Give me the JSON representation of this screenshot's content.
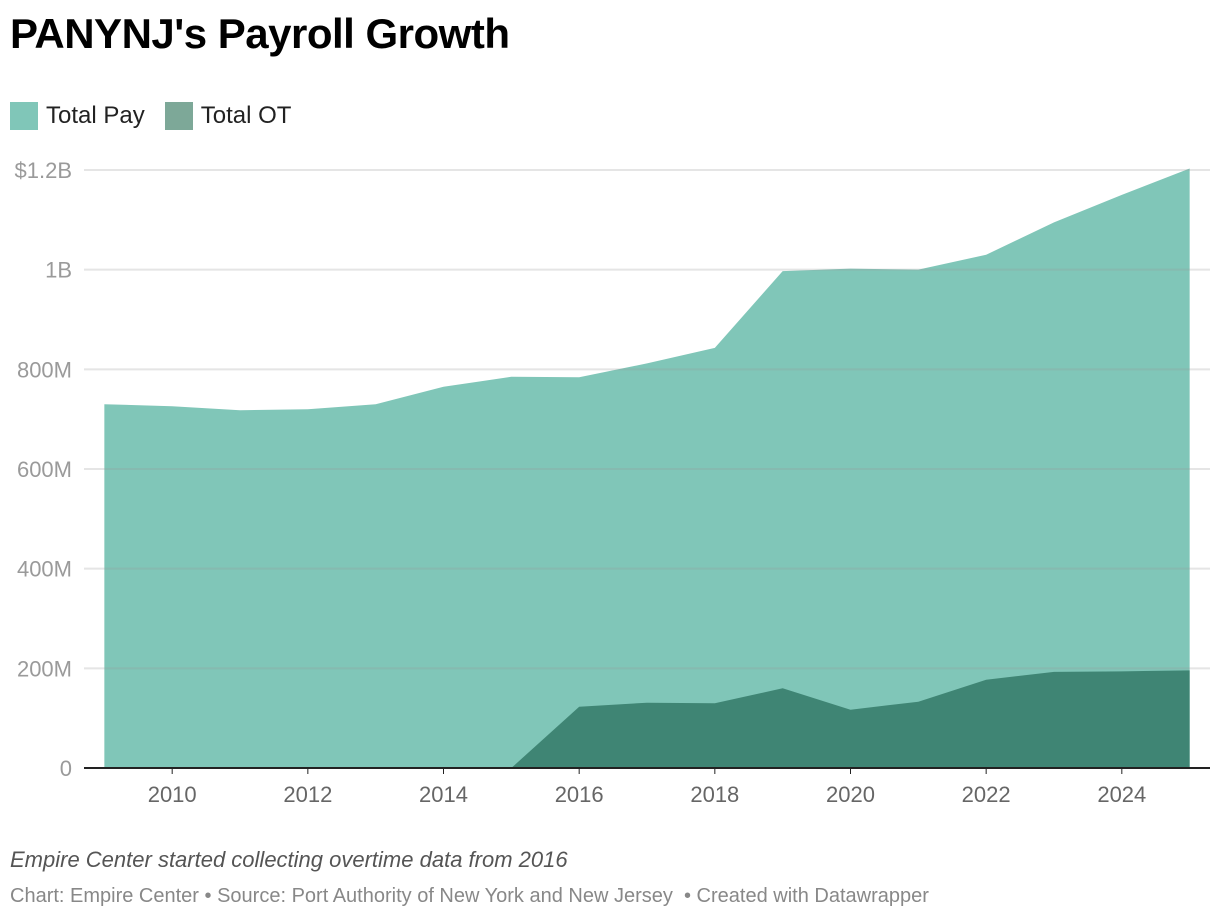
{
  "title": "PANYNJ's Payroll Growth",
  "note": "Empire Center started collecting overtime data from 2016",
  "credit": {
    "chart": "Chart: Empire Center",
    "sep1": " • ",
    "source": "Source: Port Authority of New York and New Jersey",
    "sep2": "  • ",
    "created": "Created with Datawrapper"
  },
  "colors": {
    "total_pay": "#80c6b8",
    "total_ot": "#3f8574",
    "grid": "#e1e1e1",
    "axis_text": "#9a9a9a"
  },
  "chart_data": {
    "type": "area",
    "x": [
      2009,
      2010,
      2011,
      2012,
      2013,
      2014,
      2015,
      2016,
      2017,
      2018,
      2019,
      2020,
      2021,
      2022,
      2023,
      2024,
      2025
    ],
    "series": [
      {
        "name": "Total Pay",
        "color": "#80c6b8",
        "values": [
          730,
          726,
          718,
          720,
          730,
          765,
          785,
          784,
          812,
          843,
          997,
          1002,
          1000,
          1030,
          1095,
          1150,
          1203
        ]
      },
      {
        "name": "Total OT",
        "color": "#3f8574",
        "values": [
          0,
          0,
          0,
          0,
          0,
          0,
          0,
          123,
          131,
          130,
          160,
          117,
          133,
          177,
          193,
          194,
          196
        ]
      }
    ],
    "y_ticks": [
      {
        "value": 0,
        "label": "0"
      },
      {
        "value": 200,
        "label": "200M"
      },
      {
        "value": 400,
        "label": "400M"
      },
      {
        "value": 600,
        "label": "600M"
      },
      {
        "value": 800,
        "label": "800M"
      },
      {
        "value": 1000,
        "label": "1B"
      },
      {
        "value": 1200,
        "label": "$1.2B"
      }
    ],
    "x_ticks": [
      {
        "value": 2010,
        "label": "2010"
      },
      {
        "value": 2012,
        "label": "2012"
      },
      {
        "value": 2014,
        "label": "2014"
      },
      {
        "value": 2016,
        "label": "2016"
      },
      {
        "value": 2018,
        "label": "2018"
      },
      {
        "value": 2020,
        "label": "2020"
      },
      {
        "value": 2022,
        "label": "2022"
      },
      {
        "value": 2024,
        "label": "2024"
      }
    ],
    "xlim": [
      2008.7,
      2025.3
    ],
    "ylim": [
      0,
      1200
    ],
    "y_unit": "millions of dollars",
    "grid": true,
    "legend_position": "top-left"
  }
}
